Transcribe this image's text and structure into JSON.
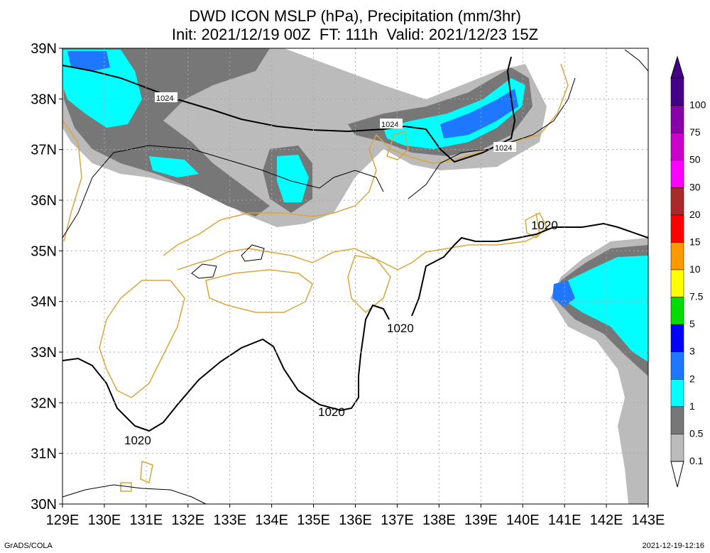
{
  "title_line1": "DWD ICON MSLP (hPa), Precipitation (mm/3hr)",
  "title_line2": "Init: 2021/12/19 00Z  FT: 111h  Valid: 2021/12/23 15Z",
  "lat_labels": [
    "39N",
    "38N",
    "37N",
    "36N",
    "35N",
    "34N",
    "33N",
    "32N",
    "31N",
    "30N"
  ],
  "lon_labels": [
    "129E",
    "130E",
    "131E",
    "132E",
    "133E",
    "134E",
    "135E",
    "136E",
    "137E",
    "138E",
    "139E",
    "140E",
    "141E",
    "142E",
    "143E"
  ],
  "colorbar": {
    "labels": [
      "100",
      "75",
      "50",
      "30",
      "20",
      "15",
      "10",
      "7.5",
      "5",
      "3",
      "2",
      "1",
      "0.5",
      "0.1"
    ],
    "colors": [
      "#440088",
      "#8800aa",
      "#cc00cc",
      "#ff00ff",
      "#aa2a2a",
      "#ff0000",
      "#ff9900",
      "#ffff00",
      "#00dd00",
      "#0000ff",
      "#1e78ff",
      "#00ffff",
      "#777777",
      "#bbbbbb"
    ]
  },
  "isobar_labels": [
    "1024",
    "1024",
    "1024",
    "1020",
    "1020",
    "1020",
    "1020"
  ],
  "footer_left": "GrADS/COLA",
  "footer_right": "2021-12-19-12:16"
}
